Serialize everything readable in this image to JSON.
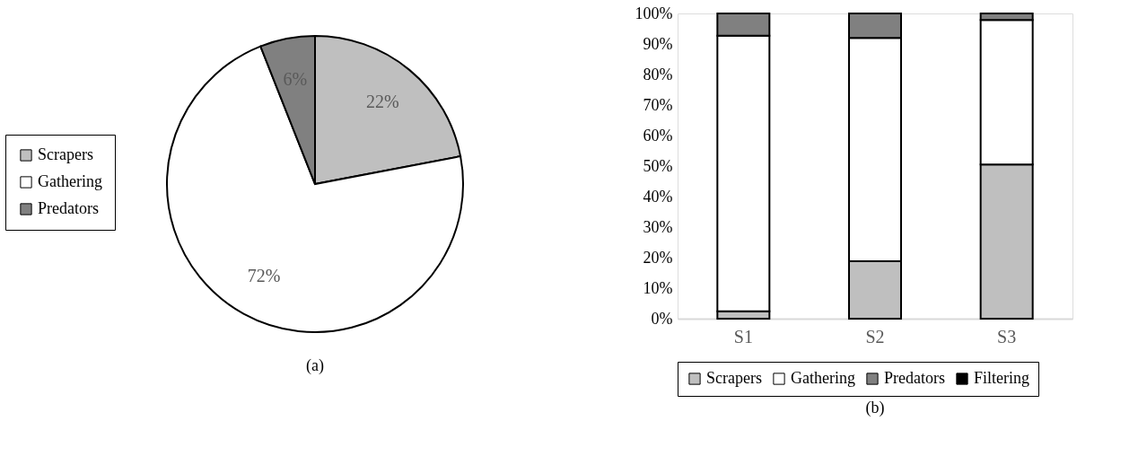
{
  "chart_data": [
    {
      "type": "pie",
      "title": "(a)",
      "categories": [
        "Scrapers",
        "Gathering",
        "Predators"
      ],
      "values": [
        22,
        72,
        6
      ],
      "colors": [
        "#bfbfbf",
        "#ffffff",
        "#808080"
      ],
      "value_labels": [
        "22%",
        "72%",
        "6%"
      ],
      "legend": "left"
    },
    {
      "type": "bar",
      "title": "(b)",
      "stacked": true,
      "categories": [
        "S1",
        "S2",
        "S3"
      ],
      "series": [
        {
          "name": "Scrapers",
          "color": "#bfbfbf",
          "values": [
            2.4,
            18.8,
            50.5
          ]
        },
        {
          "name": "Gathering",
          "color": "#ffffff",
          "values": [
            90.3,
            73.2,
            47.4
          ]
        },
        {
          "name": "Predators",
          "color": "#808080",
          "values": [
            7.3,
            8.0,
            2.1
          ]
        },
        {
          "name": "Filtering",
          "color": "#000000",
          "values": [
            0,
            0,
            0
          ]
        }
      ],
      "ylim": [
        0,
        100
      ],
      "yticks": [
        {
          "value": 0,
          "label": "0%"
        },
        {
          "value": 10,
          "label": "10%"
        },
        {
          "value": 20,
          "label": "20%"
        },
        {
          "value": 30,
          "label": "30%"
        },
        {
          "value": 40,
          "label": "40%"
        },
        {
          "value": 50,
          "label": "50%"
        },
        {
          "value": 60,
          "label": "60%"
        },
        {
          "value": 70,
          "label": "70%"
        },
        {
          "value": 80,
          "label": "80%"
        },
        {
          "value": 90,
          "label": "90%"
        },
        {
          "value": 100,
          "label": "100%"
        }
      ],
      "grid": false,
      "legend": "bottom"
    }
  ]
}
